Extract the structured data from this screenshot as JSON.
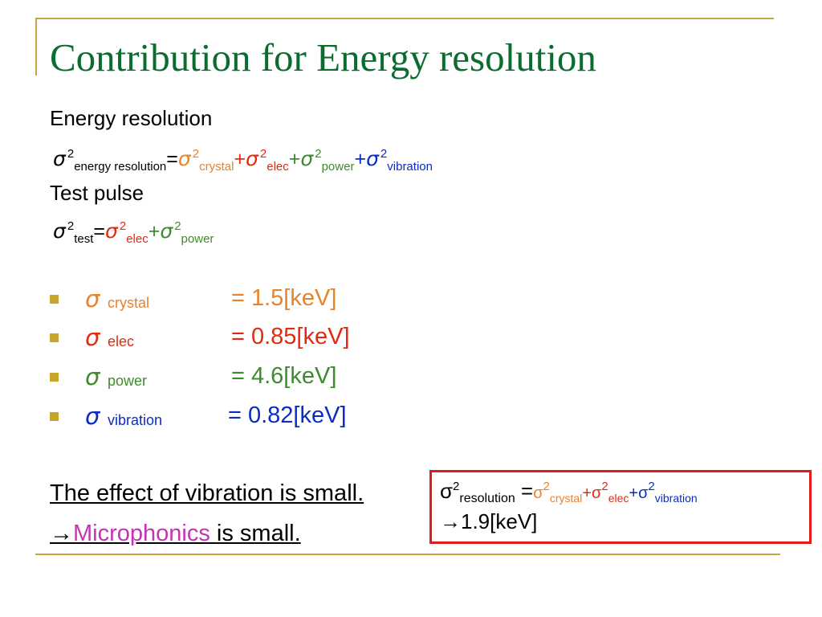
{
  "title": "Contribution for Energy resolution",
  "colors": {
    "title": "#0b6c30",
    "frame": "#c9a441",
    "crystal": "#e8822b",
    "elec": "#e4290e",
    "power": "#3e8a2f",
    "vibration": "#0b2cc2",
    "microphonics": "#c534b5",
    "box_border": "#e01b1b"
  },
  "section1": {
    "heading": "Energy resolution",
    "formula": {
      "sigma": "σ",
      "sq": "2",
      "eq": "=",
      "plus": "+",
      "lhs_sub": "energy resolution",
      "t1_sub": "crystal",
      "t2_sub": "elec",
      "t3_sub": "power",
      "t4_sub": "vibration"
    }
  },
  "section2": {
    "heading": "Test pulse",
    "formula": {
      "sigma": "σ",
      "sq": "2",
      "eq": "=",
      "plus": "+",
      "lhs_sub": "test",
      "t1_sub": "elec",
      "t2_sub": "power"
    }
  },
  "bullets": [
    {
      "sigma": "σ",
      "sub": "crystal",
      "value": "= 1.5[keV]"
    },
    {
      "sigma": "σ",
      "sub": "elec",
      "value": "= 0.85[keV]"
    },
    {
      "sigma": "σ",
      "sub": "power",
      "value": "= 4.6[keV]"
    },
    {
      "sigma": "σ",
      "sub": "vibration",
      "value": "= 0.82[keV]"
    }
  ],
  "conclusion": {
    "line1": "The effect of vibration is small.",
    "arrow": "→",
    "microphonics": "Microphonics ",
    "line2_rest": "is small."
  },
  "result_box": {
    "sigma": "σ",
    "sq": "2",
    "lhs_sub": "resolution",
    "eq": " =",
    "plus": "+",
    "t1_sub": "crystal",
    "t2_sub": "elec",
    "t3_sub": "vibration",
    "result": "→1.9[keV]"
  }
}
